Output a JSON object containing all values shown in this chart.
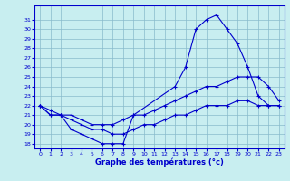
{
  "xlabel": "Graphe des températures (°c)",
  "bg_color": "#c8eef0",
  "line_color": "#0000cc",
  "grid_color": "#88bbcc",
  "hours": [
    0,
    1,
    2,
    3,
    4,
    5,
    6,
    7,
    8,
    9,
    10,
    11,
    12,
    13,
    14,
    15,
    16,
    17,
    18,
    19,
    20,
    21,
    22,
    23
  ],
  "temp_upper": [
    22,
    21,
    21,
    19.5,
    19,
    18.5,
    18,
    18,
    18,
    21,
    null,
    null,
    null,
    24,
    26,
    30,
    31,
    31.5,
    30,
    28.5,
    26,
    23,
    22,
    22
  ],
  "temp_mid": [
    22,
    21.5,
    21,
    21,
    20.5,
    20,
    20,
    20,
    20.5,
    21,
    21,
    21.5,
    22,
    22.5,
    23,
    23.5,
    24,
    24,
    24.5,
    25,
    25,
    25,
    24,
    22.5
  ],
  "temp_lower": [
    22,
    21,
    21,
    20.5,
    20,
    19.5,
    19.5,
    19,
    19,
    19.5,
    20,
    20,
    20.5,
    21,
    21,
    21.5,
    22,
    22,
    22,
    22.5,
    22.5,
    22,
    22,
    22
  ],
  "ylim": [
    17.5,
    32.5
  ],
  "yticks": [
    18,
    19,
    20,
    21,
    22,
    23,
    24,
    25,
    26,
    27,
    28,
    29,
    30,
    31
  ],
  "xticks": [
    0,
    1,
    2,
    3,
    4,
    5,
    6,
    7,
    8,
    9,
    10,
    11,
    12,
    13,
    14,
    15,
    16,
    17,
    18,
    19,
    20,
    21,
    22,
    23
  ]
}
